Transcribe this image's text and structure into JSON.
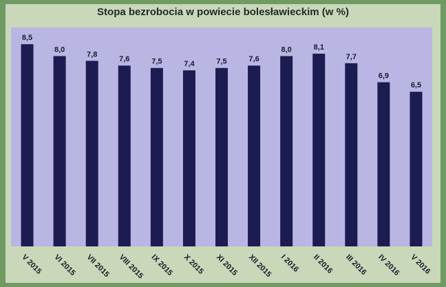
{
  "chart_data": {
    "type": "bar",
    "title": "Stopa bezrobocia w powiecie bolesławieckim (w %)",
    "categories": [
      "V 2015",
      "VI 2015",
      "VII 2015",
      "VIII 2015",
      "IX 2015",
      "X 2015",
      "XI 2015",
      "XII 2015",
      "I 2016",
      "II 2016",
      "III 2016",
      "IV 2016",
      "V 2016"
    ],
    "values": [
      8.5,
      8.0,
      7.8,
      7.6,
      7.5,
      7.4,
      7.5,
      7.6,
      8.0,
      8.1,
      7.7,
      6.9,
      6.5
    ],
    "value_labels": [
      "8,5",
      "8,0",
      "7,8",
      "7,6",
      "7,5",
      "7,4",
      "7,5",
      "7,6",
      "8,0",
      "8,1",
      "7,7",
      "6,9",
      "6,5"
    ],
    "color": "#1c1c52",
    "ylim": [
      0,
      9.2
    ]
  }
}
